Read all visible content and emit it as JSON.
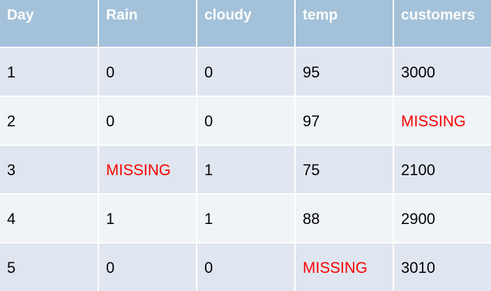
{
  "table": {
    "headers": [
      "Day",
      "Rain",
      "cloudy",
      "temp",
      "customers"
    ],
    "rows": [
      [
        "1",
        "0",
        "0",
        "95",
        "3000"
      ],
      [
        "2",
        "0",
        "0",
        "97",
        "MISSING"
      ],
      [
        "3",
        "MISSING",
        "1",
        "75",
        "2100"
      ],
      [
        "4",
        "1",
        "1",
        "88",
        "2900"
      ],
      [
        "5",
        "0",
        "0",
        "MISSING",
        "3010"
      ]
    ],
    "colors": {
      "header_bg": "#a3c1d9",
      "header_text": "#ffffff",
      "row_odd_bg": "#dfe6ef",
      "row_even_bg": "#f0f4f9",
      "missing_text": "#ff0000"
    }
  }
}
